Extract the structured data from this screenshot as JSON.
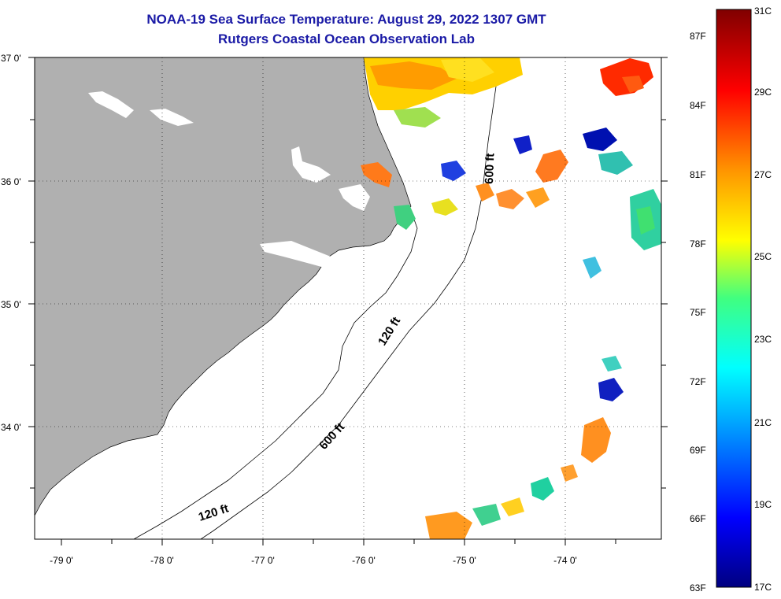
{
  "header": {
    "title": "NOAA-19 Sea Surface Temperature:  August 29, 2022 1307 GMT",
    "subtitle": "Rutgers Coastal Ocean Observation Lab"
  },
  "axes": {
    "lat_labels": [
      "37 0'",
      "36 0'",
      "35 0'",
      "34 0'"
    ],
    "lon_labels": [
      "-79 0'",
      "-78 0'",
      "-77 0'",
      "-76 0'",
      "-75 0'",
      "-74 0'"
    ]
  },
  "contours": {
    "labels": [
      "120 ft",
      "600 ft",
      "120 ft",
      "600 ft"
    ]
  },
  "colorbar": {
    "fahrenheit": [
      "87F",
      "84F",
      "81F",
      "78F",
      "75F",
      "72F",
      "69F",
      "66F",
      "63F"
    ],
    "celsius": [
      "31C",
      "29C",
      "27C",
      "25C",
      "23C",
      "21C",
      "19C",
      "17C"
    ]
  },
  "colors": {
    "land": "#b0b0b0",
    "title": "#1a1aa6",
    "warm": "#ff8c00",
    "yellow": "#ffd000",
    "red": "#ff2a00",
    "blue": "#0014b4",
    "cyan": "#20d0d0"
  }
}
